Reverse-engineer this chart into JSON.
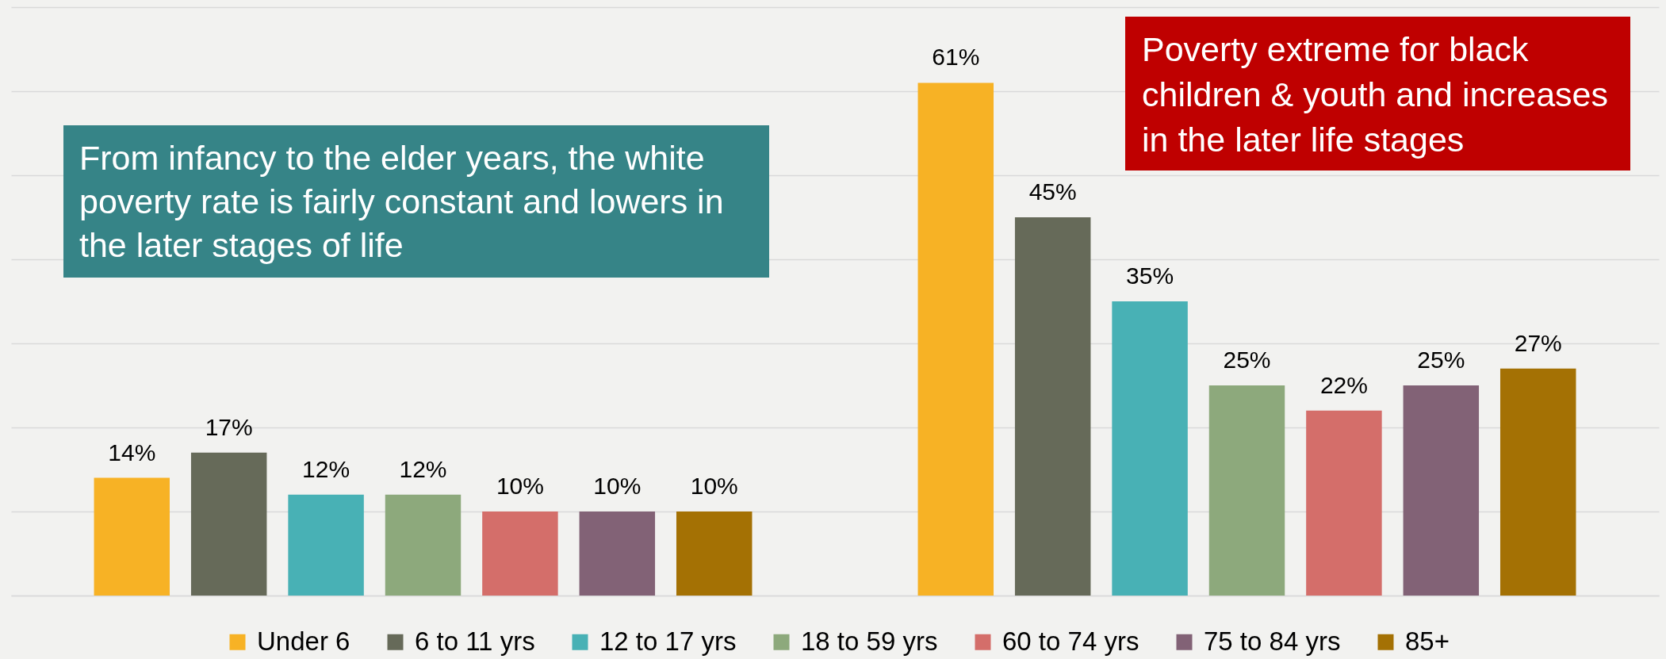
{
  "chart_data": {
    "type": "bar",
    "categories": [
      null,
      null
    ],
    "series": [
      {
        "name": "Under 6",
        "color": "#f7b225",
        "values": [
          14,
          61
        ],
        "value_labels": [
          "14%",
          "61%"
        ]
      },
      {
        "name": "6 to 11 yrs",
        "color": "#666a59",
        "values": [
          17,
          45
        ],
        "value_labels": [
          "17%",
          "45%"
        ]
      },
      {
        "name": "12 to 17 yrs",
        "color": "#48b1b5",
        "values": [
          12,
          35
        ],
        "value_labels": [
          "12%",
          "35%"
        ]
      },
      {
        "name": "18 to 59 yrs",
        "color": "#8da97c",
        "values": [
          12,
          25
        ],
        "value_labels": [
          "12%",
          "25%"
        ]
      },
      {
        "name": "60 to 74 yrs",
        "color": "#d46e6a",
        "values": [
          10,
          22
        ],
        "value_labels": [
          "10%",
          "22%"
        ]
      },
      {
        "name": "75 to 84 yrs",
        "color": "#826276",
        "values": [
          10,
          25
        ],
        "value_labels": [
          "10%",
          "25%"
        ]
      },
      {
        "name": "85+",
        "color": "#a47104",
        "values": [
          10,
          27
        ],
        "value_labels": [
          "10%",
          "27%"
        ]
      }
    ],
    "ylim": [
      0,
      70
    ],
    "yticks": [
      {
        "value": 0,
        "label": null
      },
      {
        "value": 10,
        "label": null
      },
      {
        "value": 20,
        "label": null
      },
      {
        "value": 30,
        "label": null
      },
      {
        "value": 40,
        "label": null
      },
      {
        "value": 50,
        "label": null
      },
      {
        "value": 60,
        "label": null
      },
      {
        "value": 70,
        "label": null
      }
    ],
    "grid": "y",
    "legend": "bottom",
    "annotations": [
      "From infancy to the elder years, the white poverty rate is fairly constant and lowers in the later stages of life",
      "Poverty extreme for black children & youth and increases in the later life stages"
    ]
  }
}
